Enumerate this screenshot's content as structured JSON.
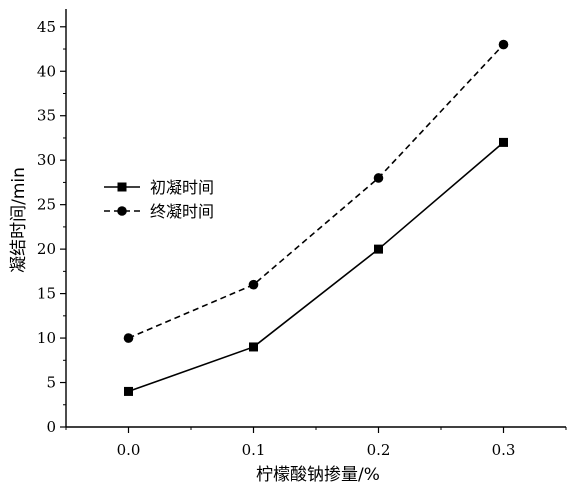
{
  "chart_data": {
    "type": "line",
    "x": [
      0.0,
      0.1,
      0.2,
      0.3
    ],
    "x_tick_labels": [
      "0.0",
      "0.1",
      "0.2",
      "0.3"
    ],
    "y_ticks": [
      0,
      5,
      10,
      15,
      20,
      25,
      30,
      35,
      40,
      45
    ],
    "xlim": [
      -0.05,
      0.35
    ],
    "ylim": [
      0,
      47
    ],
    "xlabel": "柠檬酸钠掺量/%",
    "ylabel": "凝结时间/min",
    "legend_position": "left",
    "grid": false,
    "series": [
      {
        "name": "初凝时间",
        "values": [
          4,
          9,
          20,
          32
        ],
        "marker": "square",
        "line_style": "solid",
        "color": "#000000"
      },
      {
        "name": "终凝时间",
        "values": [
          10,
          16,
          28,
          43
        ],
        "marker": "circle",
        "line_style": "dashed",
        "color": "#000000"
      }
    ]
  }
}
